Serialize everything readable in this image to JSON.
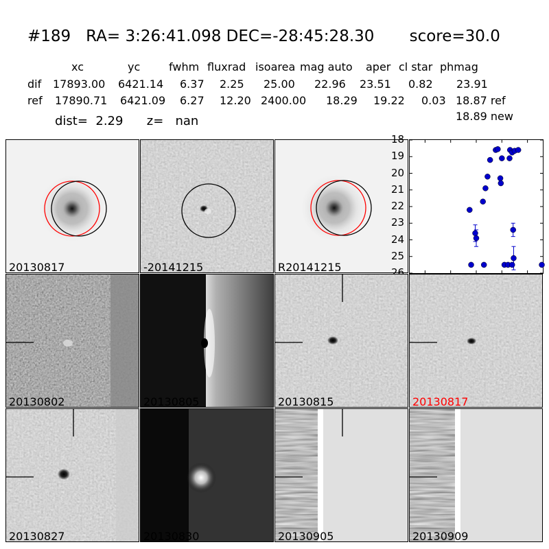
{
  "header": {
    "title": "#189   RA= 3:26:41.098 DEC=-28:45:28.30       score=30.0",
    "columns": [
      "xc",
      "yc",
      "fwhm",
      "fluxrad",
      "isoarea",
      "mag auto",
      "aper",
      "cl star",
      "phmag"
    ],
    "rows": [
      {
        "name": "dif",
        "values": [
          "17893.00",
          "6421.14",
          "6.37",
          "2.25",
          "25.00",
          "22.96",
          "23.51",
          "0.82",
          "23.91"
        ]
      },
      {
        "name": "ref",
        "values": [
          "17890.71",
          "6421.09",
          "6.27",
          "12.20",
          "2400.00",
          "18.29",
          "19.22",
          "0.03",
          "18.87 ref"
        ]
      }
    ],
    "dist_line": "dist=  2.29      z=   nan",
    "new_phmag": "18.89 new"
  },
  "panels": [
    {
      "label": "20130817"
    },
    {
      "label": "-20141215"
    },
    {
      "label": "R20141215"
    },
    {
      "label": "20130802"
    },
    {
      "label": "20130805"
    },
    {
      "label": "20130815"
    },
    {
      "label": "20130817",
      "color": "#ff0000"
    },
    {
      "label": "20130827"
    },
    {
      "label": "20130830"
    },
    {
      "label": "20130905"
    },
    {
      "label": "20130909"
    }
  ],
  "colors": {
    "marker": "#0000cc",
    "highlight": "#ff0000",
    "circle_ref": "#ff0000",
    "circle_dif": "#000000"
  },
  "chart_data": {
    "type": "scatter",
    "xlim": [
      -130,
      130
    ],
    "ylim": [
      26,
      18
    ],
    "xticks": [
      "−100",
      "−50",
      "0",
      "50",
      "100"
    ],
    "xtick_values": [
      -100,
      -50,
      0,
      50,
      100
    ],
    "yticks": [
      "18",
      "19",
      "20",
      "21",
      "22",
      "23",
      "24",
      "25",
      "26"
    ],
    "ytick_values": [
      18,
      19,
      20,
      21,
      22,
      23,
      24,
      25,
      26
    ],
    "points": [
      {
        "x": -13,
        "y": 22.2
      },
      {
        "x": -10,
        "y": 25.5
      },
      {
        "x": -2,
        "y": 23.6,
        "err": 0.5
      },
      {
        "x": 0,
        "y": 23.9,
        "err": 0.5
      },
      {
        "x": 13,
        "y": 21.7
      },
      {
        "x": 15,
        "y": 25.5
      },
      {
        "x": 18,
        "y": 20.9
      },
      {
        "x": 22,
        "y": 20.2
      },
      {
        "x": 27,
        "y": 19.2
      },
      {
        "x": 38,
        "y": 18.6
      },
      {
        "x": 42,
        "y": 18.55
      },
      {
        "x": 47,
        "y": 20.3
      },
      {
        "x": 48,
        "y": 20.6
      },
      {
        "x": 50,
        "y": 19.1
      },
      {
        "x": 55,
        "y": 25.5
      },
      {
        "x": 62,
        "y": 25.5
      },
      {
        "x": 65,
        "y": 19.1
      },
      {
        "x": 66,
        "y": 18.6
      },
      {
        "x": 70,
        "y": 18.75
      },
      {
        "x": 72,
        "y": 23.4,
        "err": 0.4
      },
      {
        "x": 73,
        "y": 25.1,
        "err": 0.7
      },
      {
        "x": 70,
        "y": 25.5
      },
      {
        "x": 75,
        "y": 18.65
      },
      {
        "x": 82,
        "y": 18.6
      },
      {
        "x": 128,
        "y": 25.5
      }
    ]
  }
}
